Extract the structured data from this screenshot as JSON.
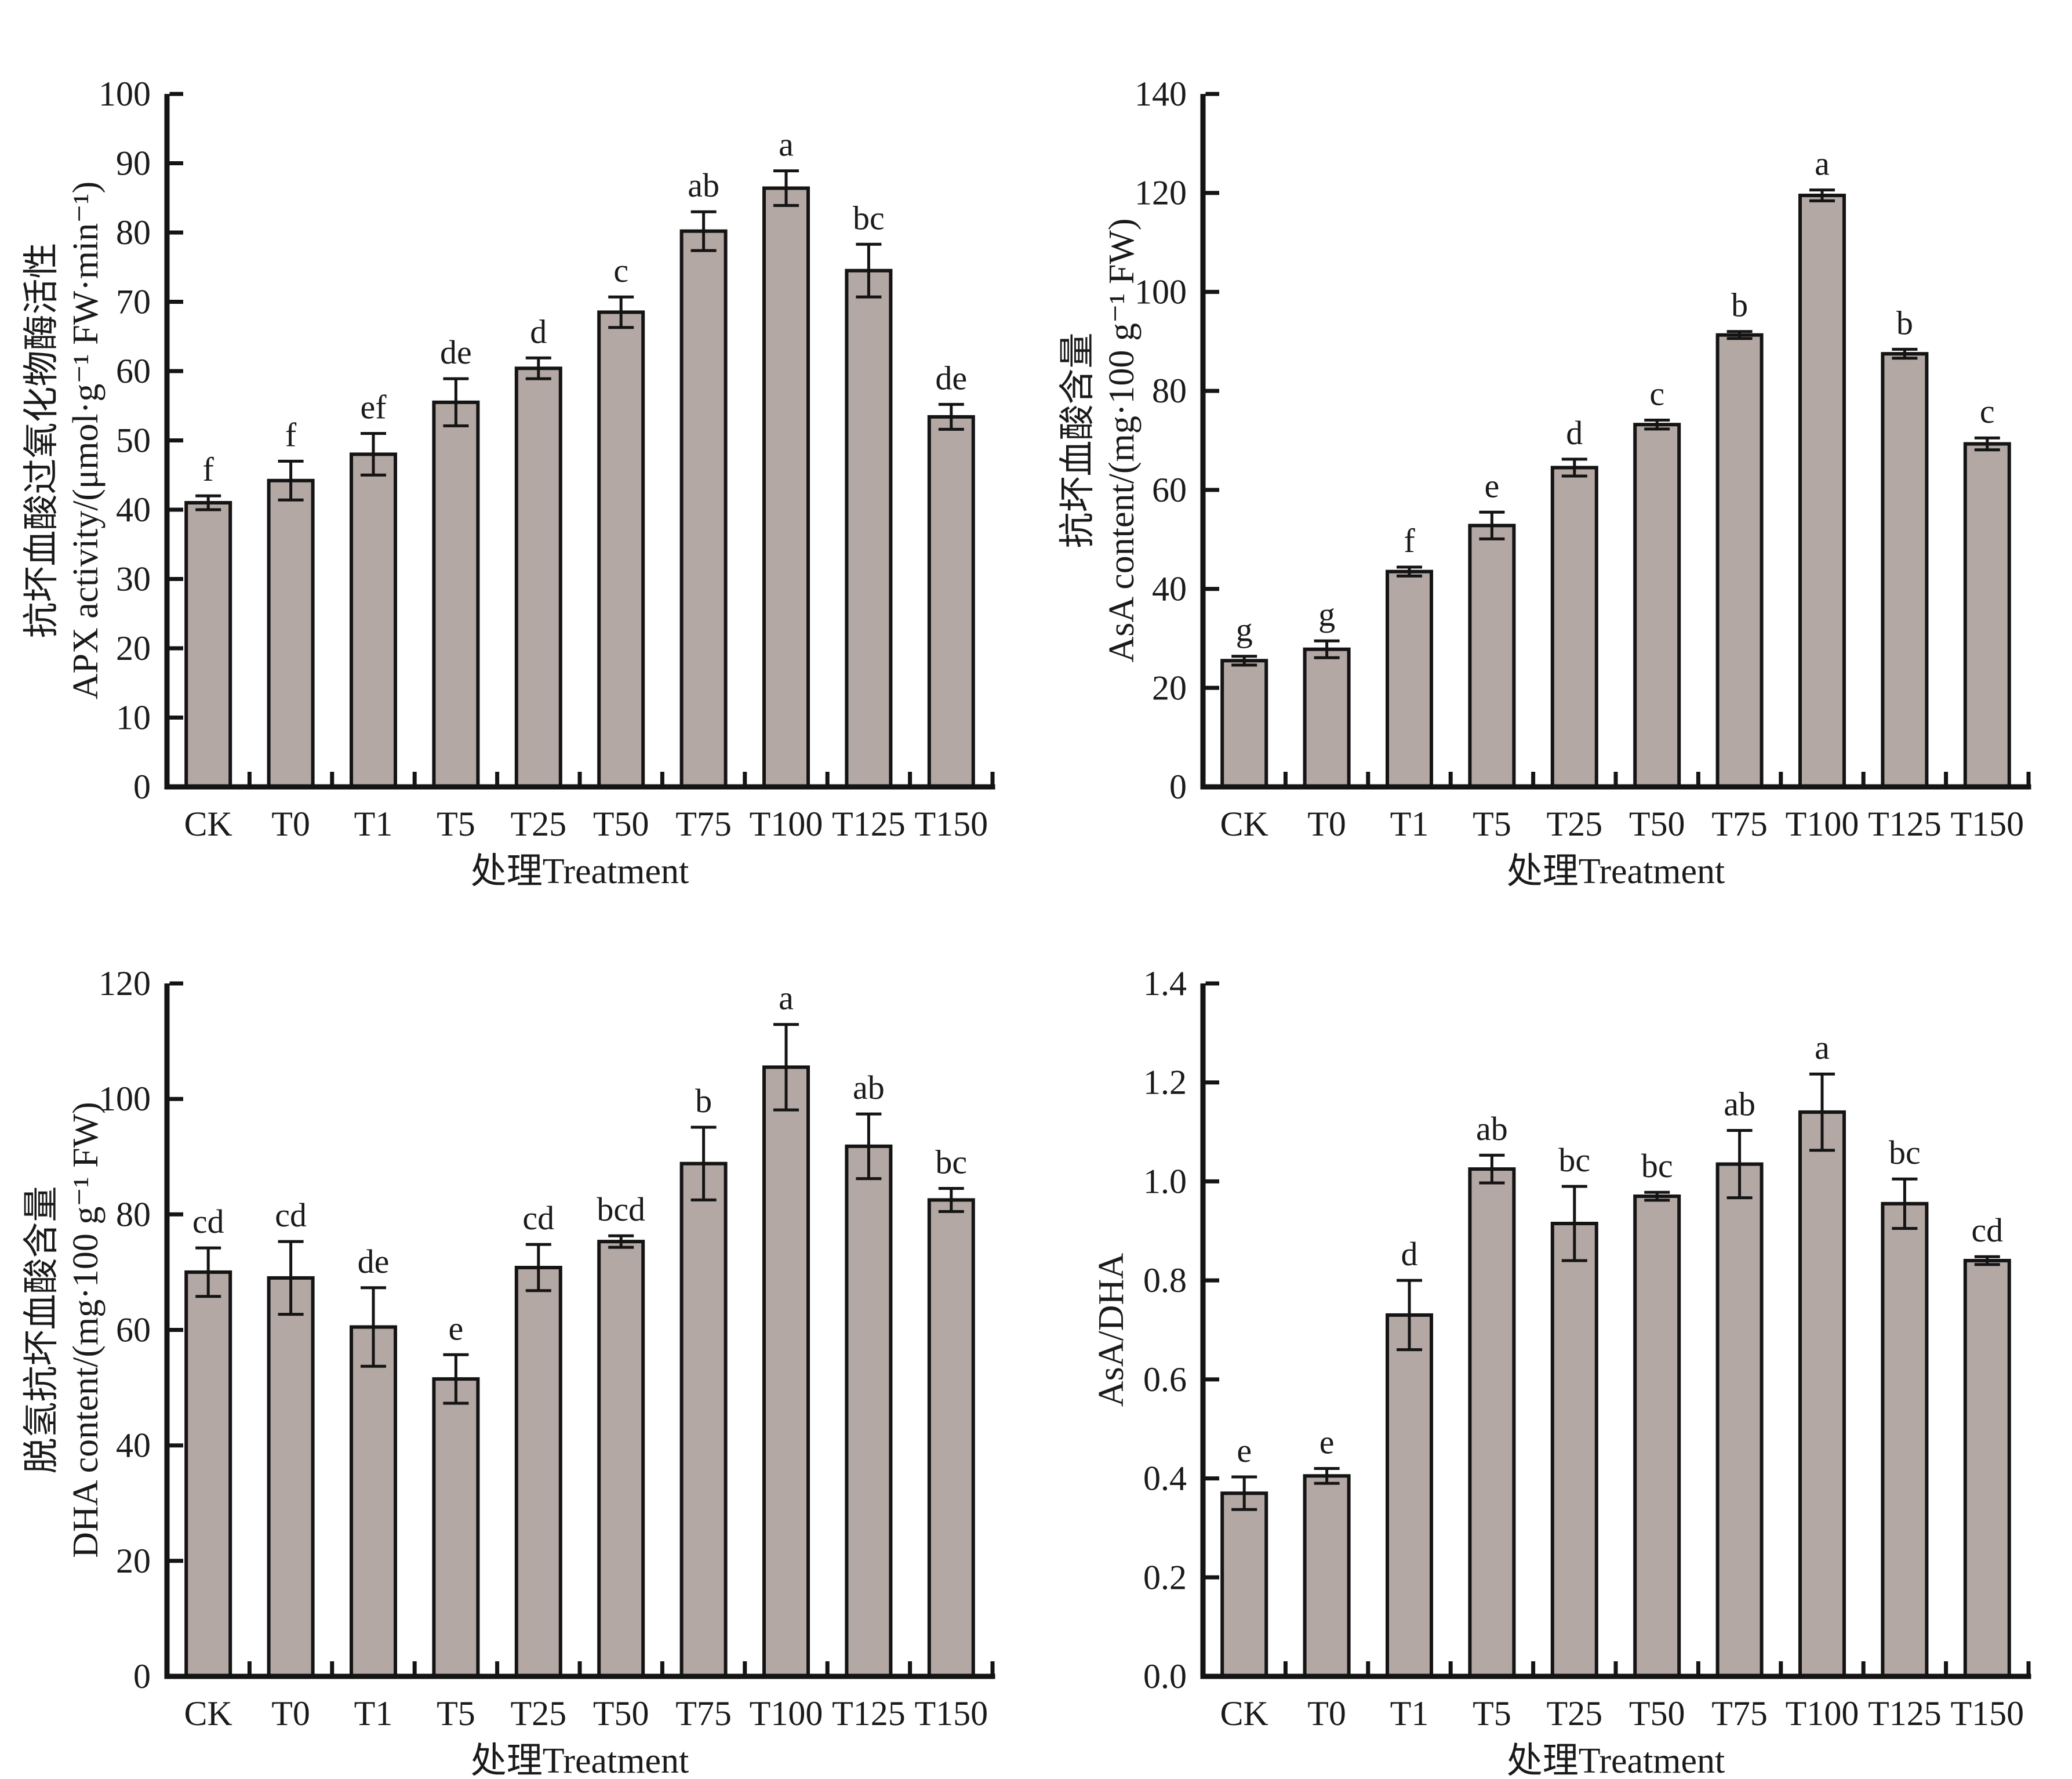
{
  "figure": {
    "background": "#ffffff",
    "bar_fill": "#b3a8a4",
    "bar_stroke": "#141414",
    "axis_color": "#141414",
    "text_color": "#1a1a1a",
    "xlabel": "处理Treatment"
  },
  "chart_data": [
    {
      "type": "bar",
      "position": "top-left",
      "ylabel_cn": "抗坏血酸过氧化物酶活性",
      "ylabel_en": "APX activity/(μmol·g⁻¹ FW·min⁻¹)",
      "xlabel": "处理Treatment",
      "categories": [
        "CK",
        "T0",
        "T1",
        "T5",
        "T25",
        "T50",
        "T75",
        "T100",
        "T125",
        "T150"
      ],
      "values": [
        41.0,
        44.2,
        48.0,
        55.5,
        60.4,
        68.5,
        80.2,
        86.4,
        74.5,
        53.4
      ],
      "errors": [
        1.0,
        2.8,
        3.0,
        3.4,
        1.5,
        2.2,
        2.8,
        2.5,
        3.8,
        1.8
      ],
      "sig_letters": [
        "f",
        "f",
        "ef",
        "de",
        "d",
        "c",
        "ab",
        "a",
        "bc",
        "de"
      ],
      "ylim": [
        0,
        100
      ],
      "yticks": [
        "0",
        "10",
        "20",
        "30",
        "40",
        "50",
        "60",
        "70",
        "80",
        "90",
        "100"
      ],
      "grid": false,
      "legend": null
    },
    {
      "type": "bar",
      "position": "top-right",
      "ylabel_cn": "抗坏血酸含量",
      "ylabel_en": "AsA content/(mg·100 g⁻¹ FW)",
      "xlabel": "处理Treatment",
      "categories": [
        "CK",
        "T0",
        "T1",
        "T5",
        "T25",
        "T50",
        "T75",
        "T100",
        "T125",
        "T150"
      ],
      "values": [
        25.5,
        27.8,
        43.5,
        52.8,
        64.5,
        73.2,
        91.3,
        119.5,
        87.5,
        69.3
      ],
      "errors": [
        0.9,
        1.7,
        0.9,
        2.7,
        1.7,
        0.9,
        0.7,
        1.1,
        0.9,
        1.2
      ],
      "sig_letters": [
        "g",
        "g",
        "f",
        "e",
        "d",
        "c",
        "b",
        "a",
        "b",
        "c"
      ],
      "ylim": [
        0,
        140
      ],
      "yticks": [
        "0",
        "20",
        "40",
        "60",
        "80",
        "100",
        "120",
        "140"
      ],
      "grid": false,
      "legend": null
    },
    {
      "type": "bar",
      "position": "bottom-left",
      "ylabel_cn": "脱氢抗坏血酸含量",
      "ylabel_en": "DHA content/(mg·100 g⁻¹ FW)",
      "xlabel": "处理Treatment",
      "categories": [
        "CK",
        "T0",
        "T1",
        "T5",
        "T25",
        "T50",
        "T75",
        "T100",
        "T125",
        "T150"
      ],
      "values": [
        70.0,
        69.0,
        60.5,
        51.5,
        70.8,
        75.3,
        88.8,
        105.5,
        91.8,
        82.5
      ],
      "errors": [
        4.2,
        6.3,
        6.8,
        4.2,
        4.0,
        1.0,
        6.3,
        7.4,
        5.6,
        2.0
      ],
      "sig_letters": [
        "cd",
        "cd",
        "de",
        "e",
        "cd",
        "bcd",
        "b",
        "a",
        "ab",
        "bc"
      ],
      "ylim": [
        0,
        120
      ],
      "yticks": [
        "0",
        "20",
        "40",
        "60",
        "80",
        "100",
        "120"
      ],
      "grid": false,
      "legend": null
    },
    {
      "type": "bar",
      "position": "bottom-right",
      "ylabel_cn": "",
      "ylabel_en": "AsA/DHA",
      "xlabel": "处理Treatment",
      "categories": [
        "CK",
        "T0",
        "T1",
        "T5",
        "T25",
        "T50",
        "T75",
        "T100",
        "T125",
        "T150"
      ],
      "values": [
        0.37,
        0.405,
        0.73,
        1.025,
        0.915,
        0.97,
        1.035,
        1.14,
        0.955,
        0.84
      ],
      "errors": [
        0.033,
        0.015,
        0.07,
        0.028,
        0.075,
        0.008,
        0.068,
        0.077,
        0.05,
        0.008
      ],
      "sig_letters": [
        "e",
        "e",
        "d",
        "ab",
        "bc",
        "bc",
        "ab",
        "a",
        "bc",
        "cd"
      ],
      "ylim": [
        0,
        1.4
      ],
      "yticks": [
        "0.0",
        "0.2",
        "0.4",
        "0.6",
        "0.8",
        "1.0",
        "1.2",
        "1.4"
      ],
      "grid": false,
      "legend": null
    }
  ]
}
